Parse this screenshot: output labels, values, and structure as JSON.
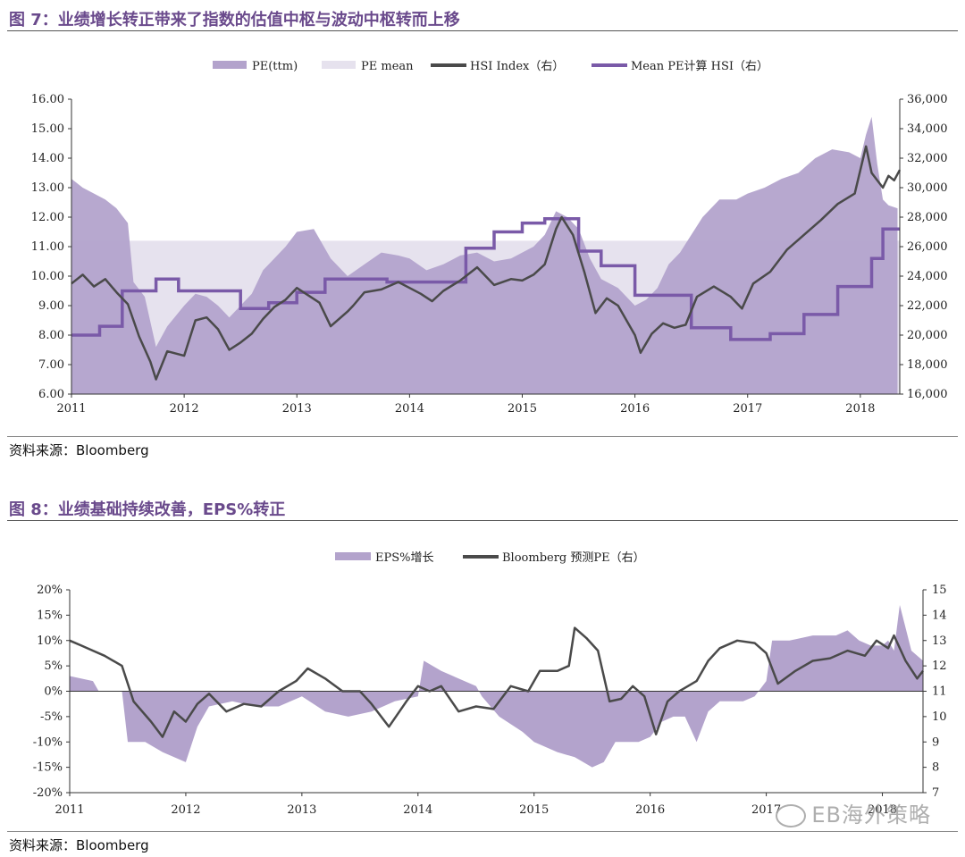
{
  "figure7": {
    "title": "图 7：业绩增长转正带来了指数的估值中枢与波动中枢转而上移",
    "source": "资料来源：Bloomberg"
  },
  "figure8": {
    "title": "图 8：业绩基础持续改善，EPS%转正",
    "source": "资料来源：Bloomberg"
  },
  "watermark": "EB海外策略",
  "colors": {
    "pe_fill": "#b3a3cc",
    "pe_mean_fill": "#e6e2ee",
    "hsi_line": "#4a4a4a",
    "mean_pe_line": "#7a5aa8",
    "eps_fill": "#b3a3cc",
    "title_color": "#6a4a8c"
  },
  "chart_data": [
    {
      "type": "area",
      "legend": [
        "PE(ttm)",
        "PE mean",
        "HSI Index（右）",
        "Mean PE计算 HSI（右）"
      ],
      "legend_position": "top",
      "x_ticks": [
        "2011",
        "2012",
        "2013",
        "2014",
        "2015",
        "2016",
        "2017",
        "2018"
      ],
      "y_left_ticks": [
        "6.00",
        "7.00",
        "8.00",
        "9.00",
        "10.00",
        "11.00",
        "12.00",
        "13.00",
        "14.00",
        "15.00",
        "16.00"
      ],
      "y_right_ticks": [
        "16,000",
        "18,000",
        "20,000",
        "22,000",
        "24,000",
        "26,000",
        "28,000",
        "30,000",
        "32,000",
        "34,000",
        "36,000"
      ],
      "ylim_left": [
        6,
        16
      ],
      "ylim_right": [
        16000,
        36000
      ],
      "xlim": [
        2011.0,
        2018.35
      ],
      "grid": false,
      "pe_mean": 11.2,
      "series": [
        {
          "name": "PE(ttm)",
          "axis": "left",
          "x": [
            2011.0,
            2011.1,
            2011.2,
            2011.3,
            2011.4,
            2011.5,
            2011.55,
            2011.65,
            2011.75,
            2011.85,
            2012.0,
            2012.1,
            2012.2,
            2012.3,
            2012.4,
            2012.5,
            2012.6,
            2012.7,
            2012.8,
            2012.9,
            2013.0,
            2013.15,
            2013.3,
            2013.45,
            2013.6,
            2013.75,
            2013.9,
            2014.0,
            2014.15,
            2014.3,
            2014.45,
            2014.6,
            2014.75,
            2014.9,
            2015.0,
            2015.1,
            2015.2,
            2015.3,
            2015.4,
            2015.5,
            2015.6,
            2015.7,
            2015.85,
            2016.0,
            2016.1,
            2016.2,
            2016.3,
            2016.4,
            2016.5,
            2016.6,
            2016.75,
            2016.9,
            2017.0,
            2017.15,
            2017.3,
            2017.45,
            2017.6,
            2017.75,
            2017.9,
            2018.0,
            2018.05,
            2018.1,
            2018.15,
            2018.2,
            2018.25,
            2018.33
          ],
          "values": [
            13.3,
            13.0,
            12.8,
            12.6,
            12.3,
            11.8,
            9.8,
            9.3,
            7.6,
            8.3,
            9.0,
            9.4,
            9.3,
            9.0,
            8.6,
            9.0,
            9.4,
            10.2,
            10.6,
            11.0,
            11.5,
            11.6,
            10.6,
            10.0,
            10.4,
            10.8,
            10.7,
            10.6,
            10.2,
            10.4,
            10.7,
            10.8,
            10.5,
            10.6,
            10.8,
            11.0,
            11.4,
            12.2,
            12.0,
            11.6,
            10.6,
            9.9,
            9.6,
            9.0,
            9.2,
            9.6,
            10.4,
            10.8,
            11.4,
            12.0,
            12.6,
            12.6,
            12.8,
            13.0,
            13.3,
            13.5,
            14.0,
            14.3,
            14.2,
            14.0,
            14.8,
            15.4,
            13.8,
            12.6,
            12.4,
            12.3
          ]
        },
        {
          "name": "HSI Index（右）",
          "axis": "right",
          "x": [
            2011.0,
            2011.1,
            2011.2,
            2011.3,
            2011.4,
            2011.5,
            2011.6,
            2011.7,
            2011.75,
            2011.85,
            2012.0,
            2012.1,
            2012.2,
            2012.3,
            2012.4,
            2012.5,
            2012.6,
            2012.7,
            2012.8,
            2012.9,
            2013.0,
            2013.1,
            2013.2,
            2013.3,
            2013.45,
            2013.5,
            2013.6,
            2013.75,
            2013.9,
            2014.0,
            2014.1,
            2014.2,
            2014.3,
            2014.45,
            2014.6,
            2014.75,
            2014.9,
            2015.0,
            2015.1,
            2015.2,
            2015.3,
            2015.35,
            2015.45,
            2015.55,
            2015.65,
            2015.75,
            2015.85,
            2016.0,
            2016.05,
            2016.15,
            2016.25,
            2016.35,
            2016.45,
            2016.55,
            2016.7,
            2016.85,
            2016.95,
            2017.05,
            2017.2,
            2017.35,
            2017.5,
            2017.65,
            2017.8,
            2017.95,
            2018.05,
            2018.1,
            2018.15,
            2018.2,
            2018.25,
            2018.3,
            2018.35
          ],
          "values": [
            23500,
            24100,
            23300,
            23800,
            22900,
            22100,
            19900,
            18200,
            17000,
            18900,
            18600,
            21000,
            21200,
            20400,
            19000,
            19500,
            20100,
            21100,
            21900,
            22400,
            23200,
            22700,
            22200,
            20600,
            21600,
            22000,
            22900,
            23100,
            23600,
            23200,
            22800,
            22300,
            23000,
            23700,
            24600,
            23400,
            23800,
            23700,
            24100,
            24800,
            27200,
            28000,
            26800,
            24300,
            21500,
            22500,
            22000,
            20000,
            18800,
            20100,
            20800,
            20500,
            20700,
            22600,
            23300,
            22600,
            21800,
            23500,
            24300,
            25800,
            26800,
            27800,
            28900,
            29600,
            32800,
            31000,
            30500,
            30000,
            30800,
            30500,
            31200
          ]
        },
        {
          "name": "Mean PE计算 HSI（右）",
          "axis": "right",
          "x": [
            2011.0,
            2011.25,
            2011.25,
            2011.45,
            2011.45,
            2011.75,
            2011.75,
            2011.95,
            2011.95,
            2012.5,
            2012.5,
            2012.75,
            2012.75,
            2013.0,
            2013.0,
            2013.25,
            2013.25,
            2013.8,
            2013.8,
            2014.5,
            2014.5,
            2014.75,
            2014.75,
            2015.0,
            2015.0,
            2015.2,
            2015.2,
            2015.5,
            2015.5,
            2015.7,
            2015.7,
            2016.0,
            2016.0,
            2016.5,
            2016.5,
            2016.85,
            2016.85,
            2017.2,
            2017.2,
            2017.5,
            2017.5,
            2017.8,
            2017.8,
            2018.1,
            2018.1,
            2018.2,
            2018.2,
            2018.35
          ],
          "values": [
            20000,
            20000,
            20600,
            20600,
            23000,
            23000,
            23800,
            23800,
            23000,
            23000,
            21800,
            21800,
            22200,
            22200,
            22900,
            22900,
            23800,
            23800,
            23600,
            23600,
            25900,
            25900,
            27000,
            27000,
            27600,
            27600,
            27900,
            27900,
            25700,
            25700,
            24700,
            24700,
            22700,
            22700,
            20500,
            20500,
            19700,
            19700,
            20100,
            20100,
            21400,
            21400,
            23300,
            23300,
            25200,
            25200,
            27200,
            27200
          ]
        }
      ]
    },
    {
      "type": "area",
      "legend": [
        "EPS%增长",
        "Bloomberg 预测PE（右）"
      ],
      "legend_position": "top",
      "x_ticks": [
        "2011",
        "2012",
        "2013",
        "2014",
        "2015",
        "2016",
        "2017",
        "2018"
      ],
      "y_left_ticks": [
        "-20%",
        "-15%",
        "-10%",
        "-5%",
        "0%",
        "5%",
        "10%",
        "15%",
        "20%"
      ],
      "y_right_ticks": [
        "7",
        "8",
        "9",
        "10",
        "11",
        "12",
        "13",
        "14",
        "15"
      ],
      "ylim_left": [
        -20,
        20
      ],
      "ylim_right": [
        7,
        15
      ],
      "xlim": [
        2011.0,
        2018.35
      ],
      "grid": false,
      "series": [
        {
          "name": "EPS%增长",
          "axis": "left",
          "x": [
            2011.0,
            2011.2,
            2011.25,
            2011.45,
            2011.5,
            2011.65,
            2011.8,
            2011.9,
            2012.0,
            2012.1,
            2012.2,
            2012.4,
            2012.6,
            2012.8,
            2013.0,
            2013.2,
            2013.4,
            2013.6,
            2013.8,
            2014.0,
            2014.05,
            2014.2,
            2014.4,
            2014.5,
            2014.55,
            2014.7,
            2014.9,
            2015.0,
            2015.2,
            2015.35,
            2015.5,
            2015.6,
            2015.7,
            2015.9,
            2016.0,
            2016.1,
            2016.2,
            2016.3,
            2016.4,
            2016.5,
            2016.6,
            2016.8,
            2016.9,
            2017.0,
            2017.05,
            2017.2,
            2017.4,
            2017.6,
            2017.7,
            2017.8,
            2017.9,
            2018.0,
            2018.05,
            2018.1,
            2018.15,
            2018.25,
            2018.35
          ],
          "values": [
            3,
            2,
            0,
            0,
            -10,
            -10,
            -12,
            -13,
            -14,
            -7,
            -3,
            -2,
            -3,
            -3,
            -1,
            -4,
            -5,
            -4,
            -2,
            -1,
            6,
            4,
            2,
            1,
            -1,
            -5,
            -8,
            -10,
            -12,
            -13,
            -15,
            -14,
            -10,
            -10,
            -9,
            -6,
            -5,
            -5,
            -10,
            -4,
            -2,
            -2,
            -1,
            2,
            10,
            10,
            11,
            11,
            12,
            10,
            9,
            9,
            10,
            8,
            17,
            8,
            6
          ]
        },
        {
          "name": "Bloomberg 预测PE（右）",
          "axis": "right",
          "x": [
            2011.0,
            2011.1,
            2011.2,
            2011.3,
            2011.45,
            2011.55,
            2011.7,
            2011.8,
            2011.9,
            2012.0,
            2012.1,
            2012.2,
            2012.35,
            2012.5,
            2012.65,
            2012.8,
            2012.95,
            2013.05,
            2013.2,
            2013.35,
            2013.5,
            2013.6,
            2013.75,
            2013.9,
            2014.0,
            2014.1,
            2014.2,
            2014.35,
            2014.5,
            2014.65,
            2014.8,
            2014.95,
            2015.05,
            2015.2,
            2015.3,
            2015.35,
            2015.45,
            2015.55,
            2015.65,
            2015.75,
            2015.85,
            2015.95,
            2016.05,
            2016.15,
            2016.25,
            2016.4,
            2016.5,
            2016.6,
            2016.75,
            2016.9,
            2017.0,
            2017.1,
            2017.25,
            2017.4,
            2017.55,
            2017.7,
            2017.85,
            2017.95,
            2018.05,
            2018.1,
            2018.2,
            2018.3,
            2018.35
          ],
          "values": [
            13.0,
            12.8,
            12.6,
            12.4,
            12.0,
            10.6,
            9.8,
            9.2,
            10.2,
            9.8,
            10.5,
            10.9,
            10.2,
            10.5,
            10.4,
            11.0,
            11.4,
            11.9,
            11.5,
            11.0,
            11.0,
            10.5,
            9.6,
            10.6,
            11.2,
            11.0,
            11.2,
            10.2,
            10.4,
            10.3,
            11.2,
            11.0,
            11.8,
            11.8,
            12.0,
            13.5,
            13.1,
            12.6,
            10.6,
            10.7,
            11.2,
            10.8,
            9.3,
            10.6,
            11.0,
            11.4,
            12.2,
            12.7,
            13.0,
            12.9,
            12.5,
            11.3,
            11.8,
            12.2,
            12.3,
            12.6,
            12.4,
            13.0,
            12.7,
            13.2,
            12.2,
            11.5,
            11.8
          ]
        }
      ]
    }
  ]
}
